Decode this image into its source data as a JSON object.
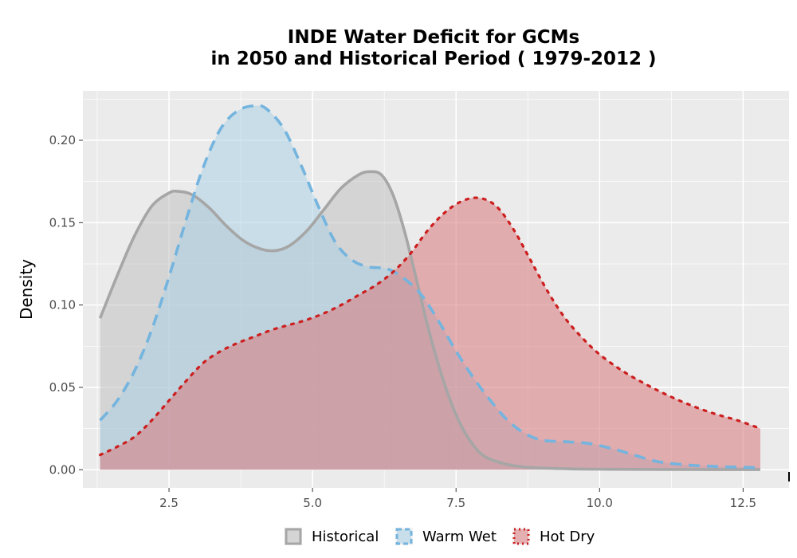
{
  "chart_data": {
    "type": "area",
    "title": "INDE  Water Deficit for GCMs",
    "subtitle": "in 2050 and Historical Period ( 1979-2012 )",
    "xlabel": "",
    "ylabel": "Density",
    "xlim": [
      1.0,
      13.3
    ],
    "ylim": [
      -0.011,
      0.23
    ],
    "x_ticks": [
      2.5,
      5.0,
      7.5,
      10.0,
      12.5
    ],
    "x_tick_labels": [
      "2.5",
      "5.0",
      "7.5",
      "10.0",
      "12.5"
    ],
    "y_ticks": [
      0.0,
      0.05,
      0.1,
      0.15,
      0.2
    ],
    "y_tick_labels": [
      "0.00",
      "0.05",
      "0.10",
      "0.15",
      "0.20"
    ],
    "grid": true,
    "legend_position": "bottom",
    "series": [
      {
        "name": "Historical",
        "line_style": "solid",
        "line_color": "#a6a6a6",
        "fill_color": "#bdbdbd",
        "x": [
          1.3,
          1.6,
          1.9,
          2.2,
          2.5,
          2.65,
          2.9,
          3.2,
          3.5,
          3.8,
          4.1,
          4.35,
          4.6,
          4.9,
          5.2,
          5.5,
          5.8,
          6.0,
          6.2,
          6.4,
          6.6,
          6.8,
          7.0,
          7.2,
          7.4,
          7.6,
          7.8,
          8.0,
          8.3,
          8.6,
          9.0,
          9.5,
          10.0,
          11.0,
          12.0,
          12.8
        ],
        "y": [
          0.092,
          0.118,
          0.142,
          0.16,
          0.168,
          0.169,
          0.167,
          0.159,
          0.148,
          0.139,
          0.134,
          0.133,
          0.136,
          0.145,
          0.158,
          0.171,
          0.179,
          0.181,
          0.179,
          0.167,
          0.145,
          0.117,
          0.088,
          0.063,
          0.042,
          0.026,
          0.015,
          0.008,
          0.004,
          0.002,
          0.001,
          0.0005,
          0.0003,
          0.0002,
          0.0001,
          0.0001
        ]
      },
      {
        "name": "Warm Wet",
        "line_style": "dashed",
        "line_color": "#74b4de",
        "fill_color": "#a6d0e6",
        "x": [
          1.3,
          1.6,
          1.9,
          2.2,
          2.5,
          2.8,
          3.1,
          3.4,
          3.7,
          4.0,
          4.2,
          4.5,
          4.8,
          5.1,
          5.4,
          5.7,
          6.0,
          6.3,
          6.6,
          6.9,
          7.2,
          7.5,
          7.8,
          8.1,
          8.4,
          8.7,
          9.0,
          9.4,
          9.8,
          10.2,
          10.6,
          11.0,
          11.5,
          12.0,
          12.5,
          12.8
        ],
        "y": [
          0.03,
          0.042,
          0.06,
          0.085,
          0.117,
          0.152,
          0.184,
          0.207,
          0.218,
          0.221,
          0.219,
          0.207,
          0.185,
          0.16,
          0.138,
          0.127,
          0.123,
          0.122,
          0.116,
          0.106,
          0.09,
          0.072,
          0.056,
          0.042,
          0.03,
          0.022,
          0.018,
          0.017,
          0.016,
          0.013,
          0.009,
          0.005,
          0.003,
          0.002,
          0.0015,
          0.0012
        ]
      },
      {
        "name": "Hot Dry",
        "line_style": "dotted",
        "line_color": "#cc1f1f",
        "fill_color": "#d9787c",
        "x": [
          1.3,
          1.6,
          1.9,
          2.2,
          2.5,
          2.8,
          3.1,
          3.4,
          3.7,
          4.0,
          4.3,
          4.6,
          4.9,
          5.2,
          5.5,
          5.8,
          6.1,
          6.4,
          6.7,
          7.0,
          7.3,
          7.6,
          7.9,
          8.2,
          8.5,
          8.8,
          9.1,
          9.4,
          9.7,
          10.0,
          10.4,
          10.8,
          11.2,
          11.6,
          12.0,
          12.4,
          12.8
        ],
        "y": [
          0.009,
          0.014,
          0.02,
          0.03,
          0.042,
          0.054,
          0.065,
          0.072,
          0.077,
          0.081,
          0.085,
          0.088,
          0.091,
          0.095,
          0.1,
          0.106,
          0.112,
          0.12,
          0.131,
          0.145,
          0.156,
          0.163,
          0.165,
          0.16,
          0.146,
          0.127,
          0.108,
          0.092,
          0.08,
          0.07,
          0.06,
          0.052,
          0.045,
          0.039,
          0.034,
          0.03,
          0.025
        ]
      }
    ]
  }
}
